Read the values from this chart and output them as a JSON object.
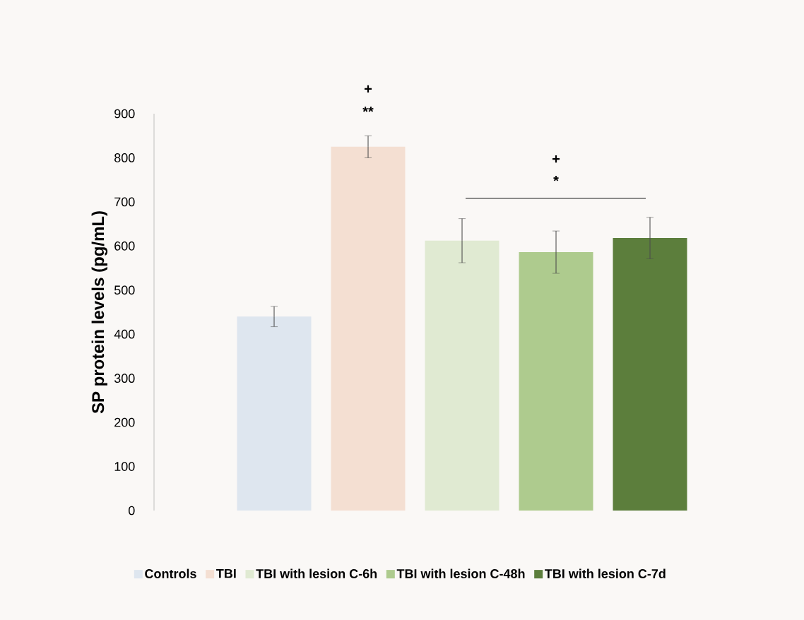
{
  "chart_data": {
    "type": "bar",
    "ylabel": "SP protein levels  (pg/mL)",
    "categories": [
      null
    ],
    "series": [
      {
        "name": "Controls",
        "color": "#dee6ef",
        "values": [
          440
        ],
        "errors": [
          23
        ]
      },
      {
        "name": "TBI",
        "color": "#f4dfd2",
        "values": [
          825
        ],
        "errors": [
          25
        ]
      },
      {
        "name": "TBI with lesion C-6h",
        "color": "#e0ead2",
        "values": [
          612
        ],
        "errors": [
          50
        ]
      },
      {
        "name": "TBI with lesion C-48h",
        "color": "#aecb8e",
        "values": [
          586
        ],
        "errors": [
          48
        ]
      },
      {
        "name": "TBI with lesion C-7d",
        "color": "#5c7e3c",
        "values": [
          618
        ],
        "errors": [
          47
        ]
      }
    ],
    "ylim": [
      0,
      900
    ],
    "yticks": [
      0,
      100,
      200,
      300,
      400,
      500,
      600,
      700,
      800,
      900
    ],
    "legend": "bottom",
    "grid": false,
    "annotations": [
      "+",
      "**",
      "+",
      "*"
    ]
  }
}
